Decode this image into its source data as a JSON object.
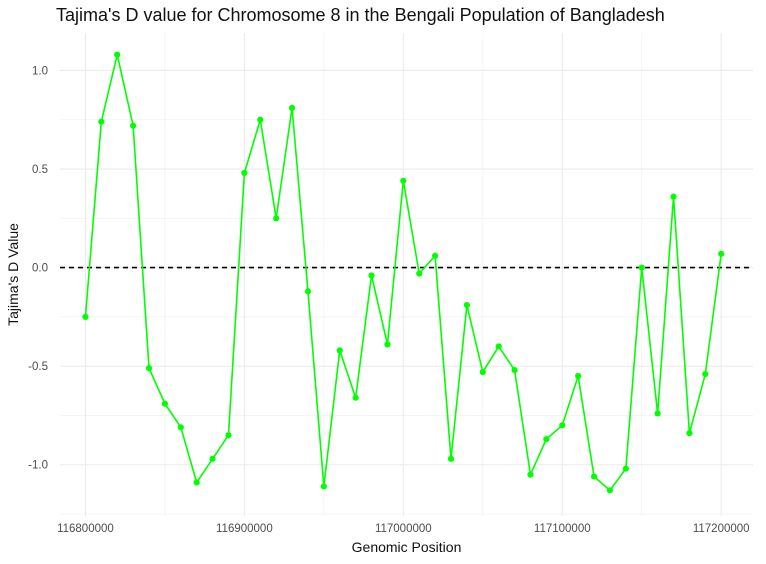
{
  "chart_data": {
    "type": "line",
    "title": "Tajima's D value for Chromosome 8 in the Bengali Population of Bangladesh",
    "xlabel": "Genomic Position",
    "ylabel": "Tajima's D Value",
    "xlim": [
      116784000,
      117220000
    ],
    "ylim": [
      -1.26,
      1.19
    ],
    "x_ticks": [
      116800000,
      116900000,
      117000000,
      117100000,
      117200000
    ],
    "x_tick_labels": [
      "116800000",
      "116900000",
      "117000000",
      "117100000",
      "117200000"
    ],
    "y_ticks": [
      -1.0,
      -0.5,
      0.0,
      0.5,
      1.0
    ],
    "y_tick_labels": [
      "-1.0",
      "-0.5",
      "0.0",
      "0.5",
      "1.0"
    ],
    "grid": true,
    "reference_line": {
      "y": 0.0,
      "style": "dashed",
      "color": "#000000"
    },
    "series": [
      {
        "color": "#00ff00",
        "x": [
          116800000,
          116810000,
          116820000,
          116830000,
          116840000,
          116850000,
          116860000,
          116870000,
          116880000,
          116890000,
          116900000,
          116910000,
          116920000,
          116930000,
          116940000,
          116950000,
          116960000,
          116970000,
          116980000,
          116990000,
          117000000,
          117010000,
          117020000,
          117030000,
          117040000,
          117050000,
          117060000,
          117070000,
          117080000,
          117090000,
          117100000,
          117110000,
          117120000,
          117130000,
          117140000,
          117150000,
          117160000,
          117170000,
          117180000,
          117190000,
          117200000
        ],
        "values": [
          -0.25,
          0.74,
          1.08,
          0.72,
          -0.51,
          -0.69,
          -0.81,
          -1.09,
          -0.97,
          -0.85,
          0.48,
          0.75,
          0.25,
          0.81,
          -0.12,
          -1.11,
          -0.42,
          -0.66,
          -0.04,
          -0.39,
          0.44,
          -0.03,
          0.06,
          -0.97,
          -0.19,
          -0.53,
          -0.4,
          -0.52,
          -1.05,
          -0.87,
          -0.8,
          -0.55,
          -1.06,
          -1.13,
          -1.02,
          0.0,
          -0.74,
          0.36,
          -0.84,
          -0.54,
          0.07
        ]
      }
    ]
  }
}
